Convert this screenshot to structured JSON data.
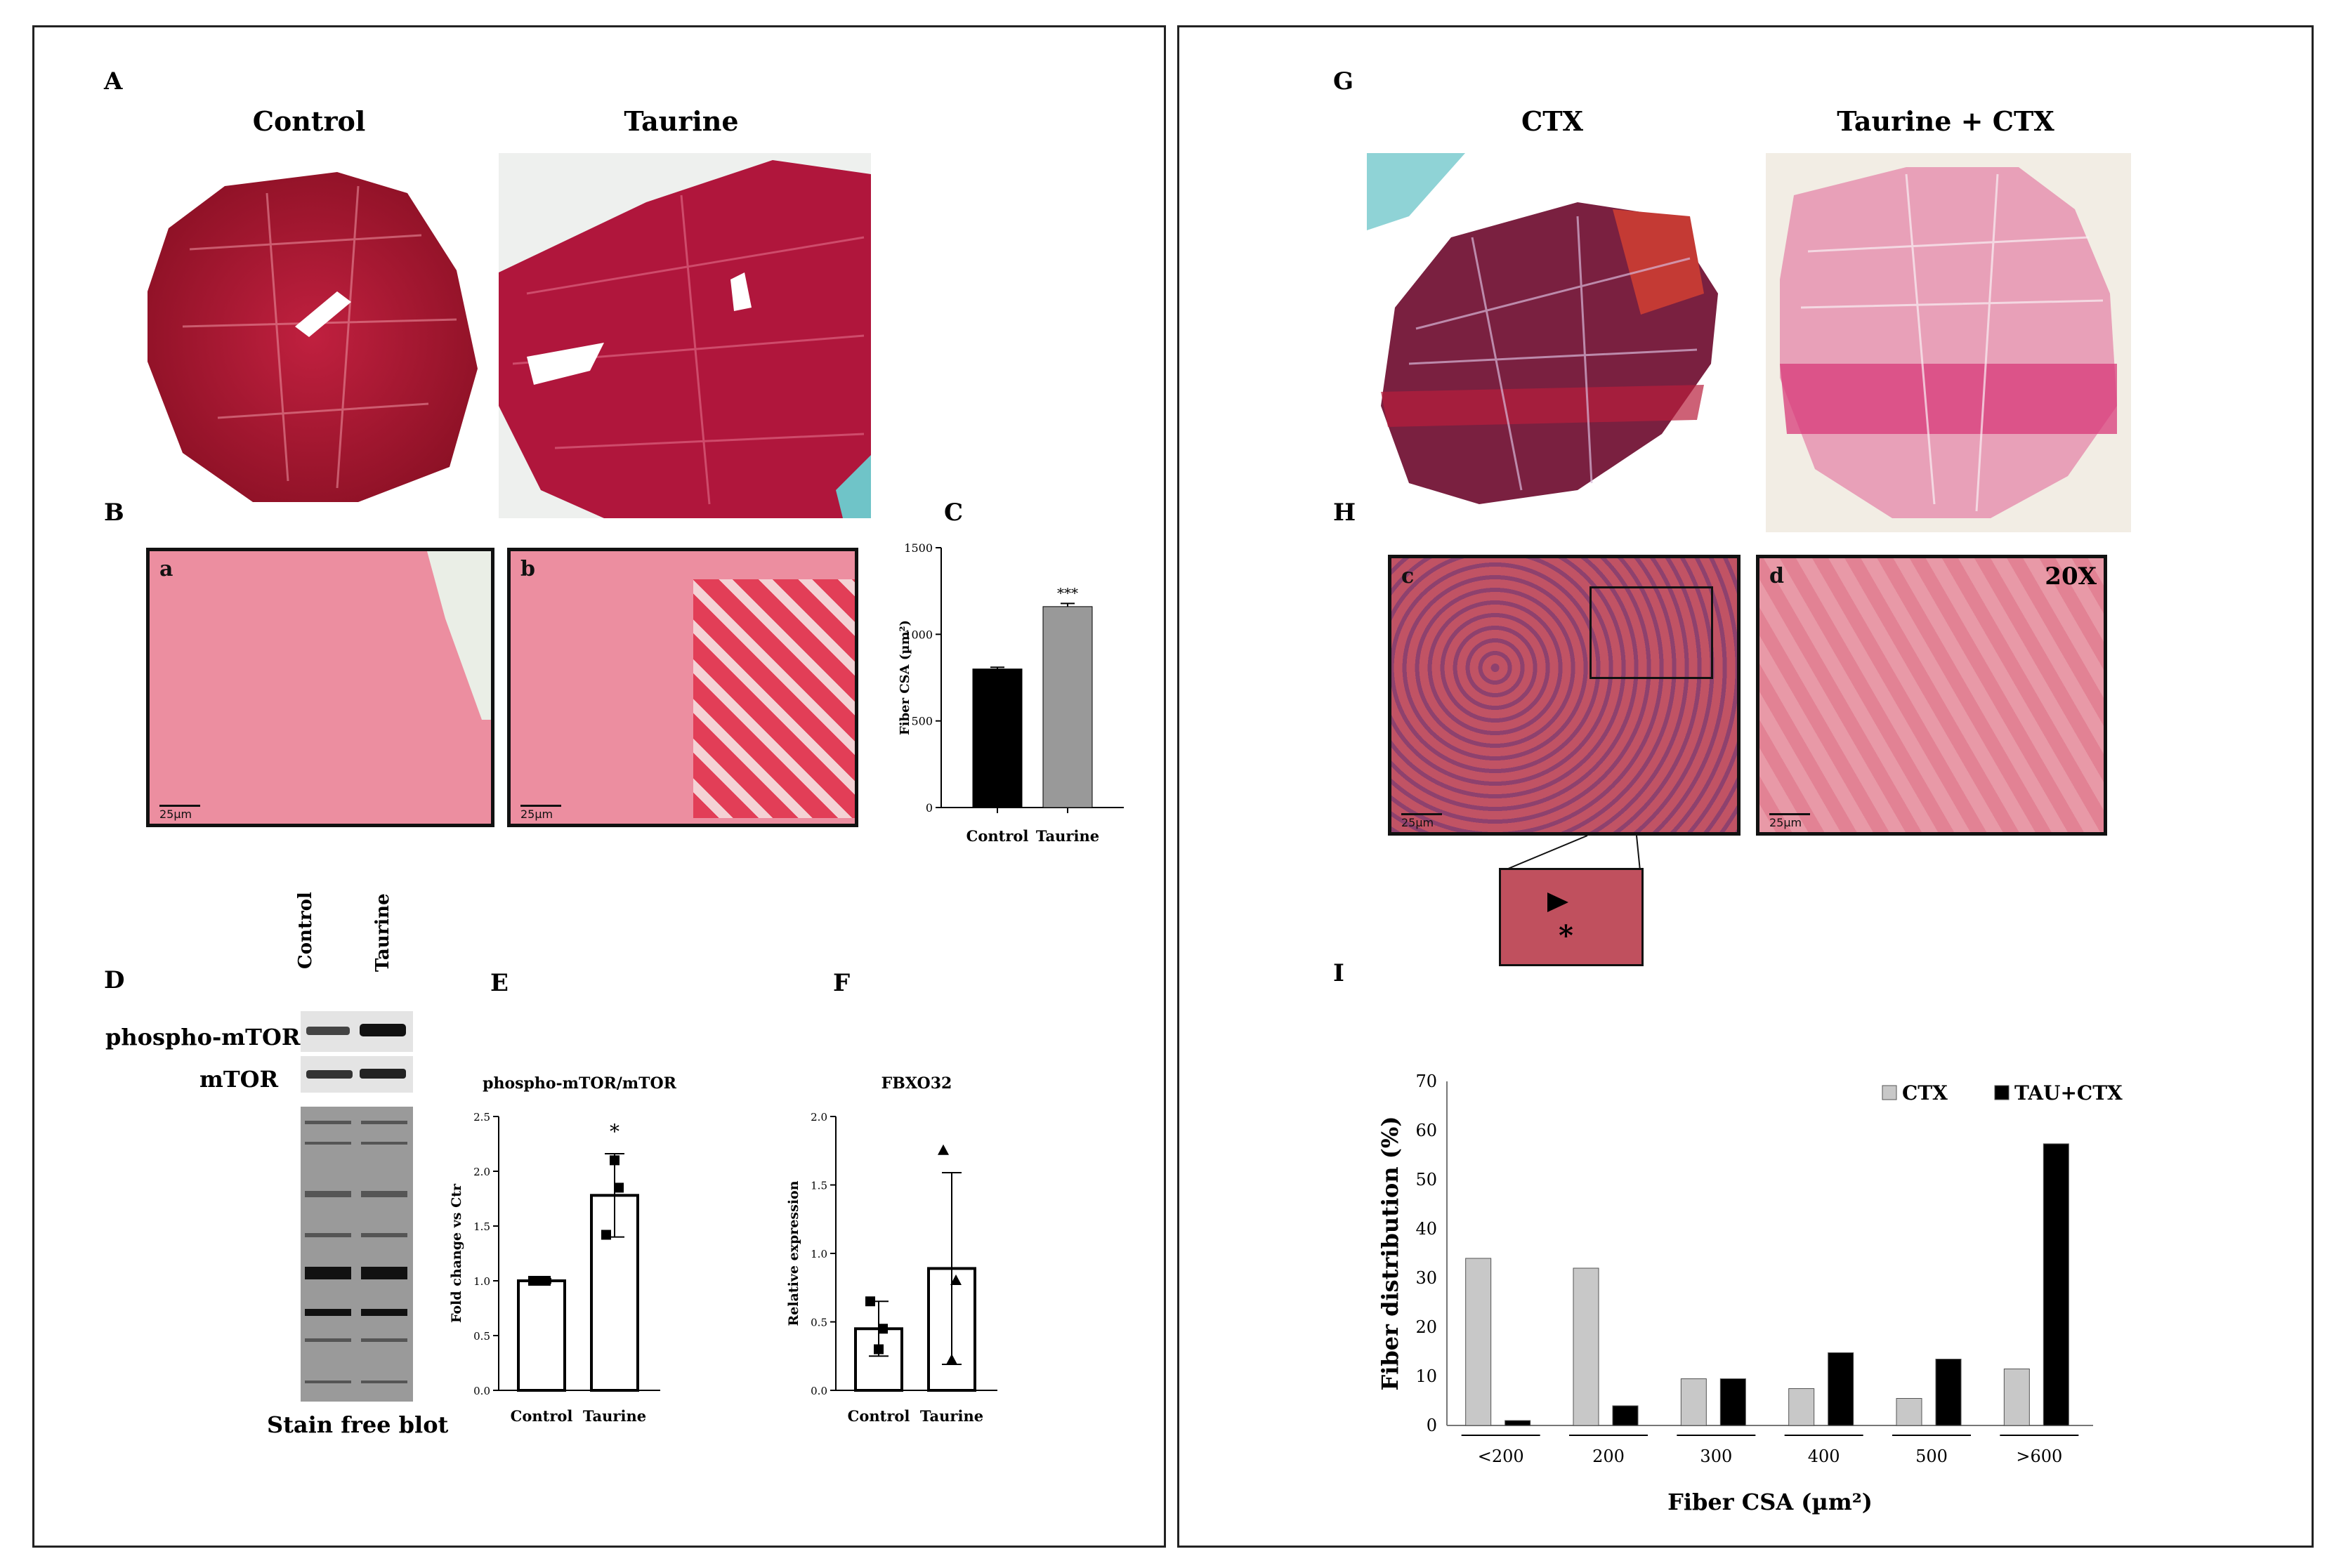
{
  "figure": {
    "left_panel": {
      "labels": {
        "A": "A",
        "B": "B",
        "C": "C",
        "D": "D",
        "E": "E",
        "F": "F"
      },
      "titles": {
        "control": "Control",
        "taurine": "Taurine"
      },
      "micro": {
        "a": "a",
        "b": "b",
        "scale": "25µm"
      },
      "blot": {
        "lane_control": "Control",
        "lane_taurine": "Taurine",
        "row1": "phospho-mTOR",
        "row2": "mTOR",
        "caption": "Stain free blot"
      }
    },
    "right_panel": {
      "labels": {
        "G": "G",
        "H": "H",
        "I": "I"
      },
      "titles": {
        "ctx": "CTX",
        "tau_ctx": "Taurine + CTX"
      },
      "micro": {
        "c": "c",
        "d": "d",
        "mag": "20X",
        "scale": "25µm",
        "asterisk": "*"
      }
    }
  },
  "chart_data": [
    {
      "id": "C",
      "type": "bar",
      "title": "",
      "ylabel": "Fiber CSA (µm²)",
      "categories": [
        "Control",
        "Taurine"
      ],
      "values": [
        800,
        1160
      ],
      "errors": [
        10,
        18
      ],
      "colors": [
        "#000000",
        "#999999"
      ],
      "ylim": [
        0,
        1500
      ],
      "yticks": [
        0,
        500,
        1000,
        1500
      ],
      "annotation": "***"
    },
    {
      "id": "E",
      "type": "bar",
      "title": "phospho-mTOR/mTOR",
      "ylabel": "Fold change vs Ctr",
      "categories": [
        "Control",
        "Taurine"
      ],
      "values": [
        1.0,
        1.78
      ],
      "errors": [
        0.02,
        0.38
      ],
      "points": [
        [
          1.0,
          1.0,
          1.0
        ],
        [
          1.42,
          1.85,
          2.1
        ]
      ],
      "ylim": [
        0,
        2.5
      ],
      "yticks": [
        "0.0",
        "0.5",
        "1.0",
        "1.5",
        "2.0",
        "2.5"
      ],
      "annotation": "*"
    },
    {
      "id": "F",
      "type": "bar",
      "title": "FBXO32",
      "ylabel": "Relative expression",
      "categories": [
        "Control",
        "Taurine"
      ],
      "values": [
        0.45,
        0.89
      ],
      "errors": [
        0.2,
        0.7
      ],
      "points": [
        [
          0.65,
          0.45,
          0.3
        ],
        [
          1.75,
          0.8,
          0.22
        ]
      ],
      "ylim": [
        0,
        2.0
      ],
      "yticks": [
        "0.0",
        "0.5",
        "1.0",
        "1.5",
        "2.0"
      ]
    },
    {
      "id": "I",
      "type": "bar",
      "title": "",
      "xlabel": "Fiber CSA (µm²)",
      "ylabel": "Fiber distribution (%)",
      "categories": [
        "<200",
        "200",
        "300",
        "400",
        "500",
        ">600"
      ],
      "series": [
        {
          "name": "CTX",
          "values": [
            34,
            32,
            9.5,
            7.5,
            5.5,
            11.5
          ],
          "color": "#c8c8c8"
        },
        {
          "name": "TAU+CTX",
          "values": [
            1,
            4,
            9.5,
            14.8,
            13.5,
            57.3
          ],
          "color": "#000000"
        }
      ],
      "ylim": [
        0,
        70
      ],
      "yticks": [
        0,
        10,
        20,
        30,
        40,
        50,
        60,
        70
      ],
      "legend": "top-right"
    }
  ]
}
